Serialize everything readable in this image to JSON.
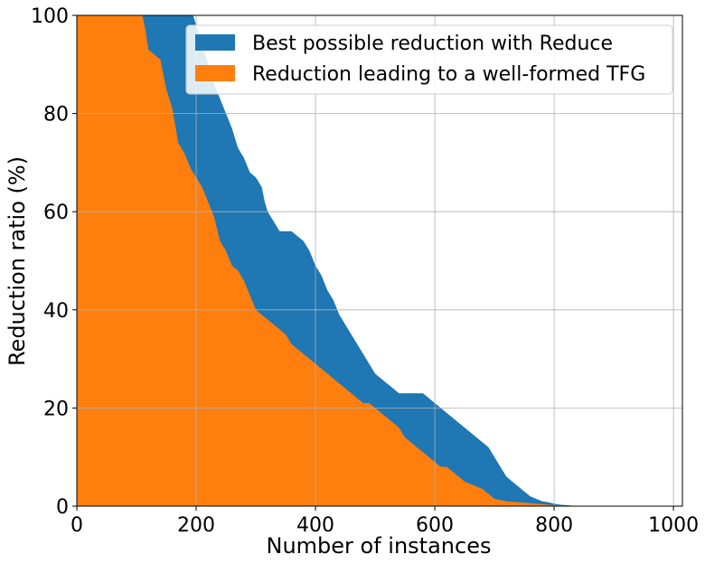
{
  "chart_data": {
    "type": "area",
    "xlabel": "Number of instances",
    "ylabel": "Reduction ratio (%)",
    "xlim": [
      0,
      1015
    ],
    "ylim": [
      0,
      100
    ],
    "xticks": [
      0,
      200,
      400,
      600,
      800,
      1000
    ],
    "yticks": [
      0,
      20,
      40,
      60,
      80,
      100
    ],
    "grid": true,
    "legend_position": "top-right",
    "series": [
      {
        "name": "Best possible reduction with Reduce",
        "color": "#1f77b4",
        "x": [
          0,
          190,
          195,
          200,
          205,
          210,
          215,
          220,
          225,
          230,
          240,
          250,
          260,
          270,
          280,
          290,
          300,
          310,
          315,
          320,
          330,
          340,
          350,
          360,
          370,
          380,
          390,
          400,
          410,
          420,
          430,
          440,
          450,
          460,
          470,
          480,
          490,
          500,
          510,
          520,
          530,
          540,
          550,
          560,
          570,
          580,
          590,
          600,
          610,
          620,
          630,
          640,
          650,
          660,
          670,
          680,
          690,
          700,
          710,
          720,
          730,
          740,
          750,
          760,
          770,
          780,
          790,
          800,
          810,
          820,
          830,
          850,
          900,
          1015
        ],
        "y": [
          100,
          100,
          100,
          98,
          96,
          94,
          92,
          90,
          88,
          86,
          83,
          80,
          77,
          73,
          71,
          68,
          67,
          65,
          62,
          60,
          58,
          56,
          56,
          56,
          55,
          54,
          52,
          49,
          47,
          44,
          42,
          39,
          37,
          35,
          33,
          31,
          29,
          27,
          26,
          25,
          24,
          23,
          23,
          23,
          23,
          23,
          22,
          21,
          20,
          19,
          18,
          17,
          16,
          15,
          14,
          13,
          12,
          10,
          8,
          6,
          5,
          4,
          3,
          2,
          1.5,
          1.0,
          0.8,
          0.5,
          0.3,
          0.2,
          0.1,
          0.05,
          0.0,
          0.0
        ]
      },
      {
        "name": "Reduction leading to a well-formed TFG",
        "color": "#ff7f0e",
        "x": [
          0,
          110,
          115,
          120,
          130,
          140,
          150,
          160,
          170,
          180,
          190,
          200,
          210,
          220,
          230,
          240,
          250,
          260,
          270,
          280,
          290,
          300,
          310,
          320,
          330,
          340,
          350,
          360,
          370,
          380,
          390,
          400,
          410,
          420,
          430,
          440,
          450,
          460,
          470,
          480,
          490,
          500,
          510,
          520,
          530,
          540,
          550,
          560,
          570,
          580,
          590,
          600,
          610,
          620,
          630,
          640,
          650,
          660,
          670,
          680,
          690,
          700,
          720,
          740,
          760,
          780,
          800,
          830,
          1015
        ],
        "y": [
          100,
          100,
          97,
          93,
          92,
          91,
          85,
          81,
          74,
          72,
          69,
          67,
          65,
          62,
          59,
          54,
          52,
          49,
          48,
          46,
          43,
          40,
          39,
          38,
          37,
          36,
          35,
          33,
          32,
          31,
          30,
          29,
          28,
          27,
          26,
          25,
          24,
          23,
          22,
          21,
          21,
          20,
          19,
          18,
          17,
          16,
          14,
          13,
          12,
          11,
          10,
          9,
          8,
          8,
          7,
          6,
          5,
          4.5,
          4,
          3.5,
          2.5,
          1.5,
          1.0,
          0.8,
          0.6,
          0.4,
          0.2,
          0.05,
          0.0
        ]
      }
    ]
  }
}
